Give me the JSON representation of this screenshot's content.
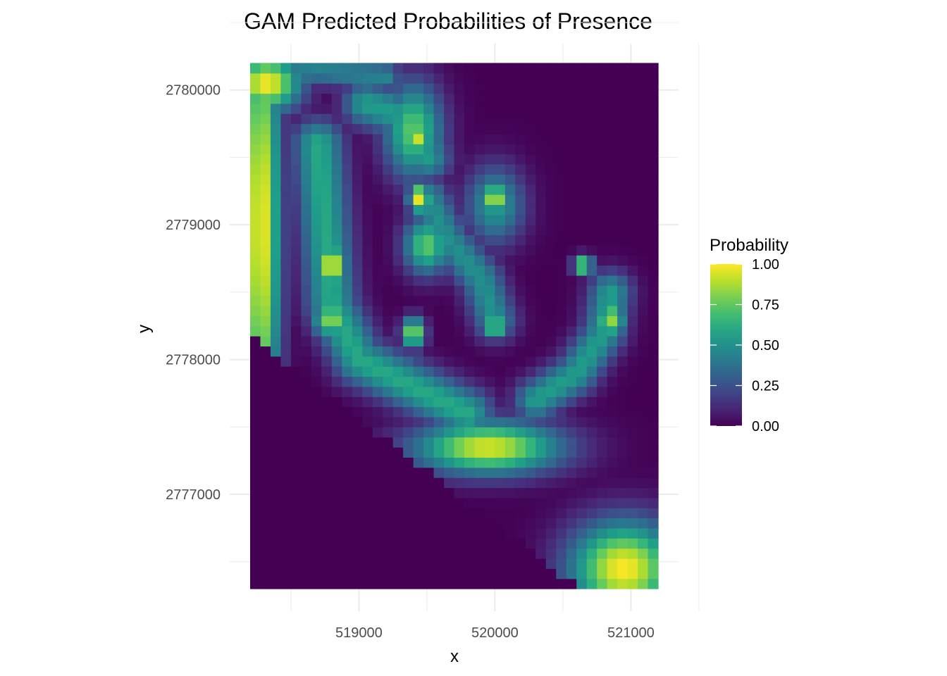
{
  "chart_data": {
    "type": "heatmap",
    "title": "GAM Predicted Probabilities of Presence",
    "xlabel": "x",
    "ylabel": "y",
    "x_ticks": [
      519000,
      520000,
      521000
    ],
    "x_tick_labels": [
      "519000",
      "520000",
      "521000"
    ],
    "y_ticks": [
      2777000,
      2778000,
      2779000,
      2780000
    ],
    "y_tick_labels": [
      "2777000",
      "2778000",
      "2779000",
      "2780000"
    ],
    "xlim": [
      518200,
      521200
    ],
    "ylim": [
      2776300,
      2780150
    ],
    "grid": true,
    "colormap": "viridis",
    "legend": {
      "title": "Probability",
      "position": "right",
      "ticks": [
        0.0,
        0.25,
        0.5,
        0.75,
        1.0
      ],
      "tick_labels": [
        "0.00",
        "0.25",
        "0.50",
        "0.75",
        "1.00"
      ]
    },
    "cell_size": [
      75,
      75
    ],
    "features": [
      {
        "kind": "blob",
        "x": 518280,
        "y": 2779000,
        "rx": 100,
        "ry": 1300,
        "value": 1.0
      },
      {
        "kind": "blob",
        "x": 518320,
        "y": 2780050,
        "rx": 180,
        "ry": 150,
        "value": 1.0
      },
      {
        "kind": "blob",
        "x": 520950,
        "y": 2776450,
        "rx": 280,
        "ry": 250,
        "value": 1.0
      },
      {
        "kind": "blob",
        "x": 519950,
        "y": 2777350,
        "rx": 380,
        "ry": 140,
        "value": 0.95
      },
      {
        "kind": "blob",
        "x": 519400,
        "y": 2779700,
        "rx": 150,
        "ry": 250,
        "value": 0.75
      },
      {
        "kind": "blob",
        "x": 519450,
        "y": 2779650,
        "rx": 60,
        "ry": 80,
        "value": 0.95
      },
      {
        "kind": "blob",
        "x": 519450,
        "y": 2779200,
        "rx": 60,
        "ry": 80,
        "value": 1.0
      },
      {
        "kind": "blob",
        "x": 520000,
        "y": 2779200,
        "rx": 60,
        "ry": 80,
        "value": 1.0
      },
      {
        "kind": "blob",
        "x": 520000,
        "y": 2779150,
        "rx": 150,
        "ry": 200,
        "value": 0.55
      },
      {
        "kind": "blob",
        "x": 519500,
        "y": 2778850,
        "rx": 120,
        "ry": 150,
        "value": 0.75
      },
      {
        "kind": "blob",
        "x": 518800,
        "y": 2778700,
        "rx": 80,
        "ry": 120,
        "value": 1.0
      },
      {
        "kind": "blob",
        "x": 518800,
        "y": 2778300,
        "rx": 100,
        "ry": 100,
        "value": 0.85
      },
      {
        "kind": "blob",
        "x": 519400,
        "y": 2778200,
        "rx": 60,
        "ry": 80,
        "value": 0.9
      },
      {
        "kind": "blob",
        "x": 520000,
        "y": 2778250,
        "rx": 50,
        "ry": 60,
        "value": 0.95
      },
      {
        "kind": "blob",
        "x": 520850,
        "y": 2778300,
        "rx": 80,
        "ry": 100,
        "value": 0.85
      },
      {
        "kind": "blob",
        "x": 520650,
        "y": 2778700,
        "rx": 50,
        "ry": 50,
        "value": 0.9
      },
      {
        "kind": "ridge",
        "points": [
          [
            518700,
            2779600
          ],
          [
            518750,
            2779000
          ],
          [
            518800,
            2778400
          ],
          [
            519000,
            2778000
          ],
          [
            519400,
            2777800
          ],
          [
            519800,
            2777600
          ]
        ],
        "width": 130,
        "value": 0.6
      },
      {
        "kind": "ridge",
        "points": [
          [
            519050,
            2779900
          ],
          [
            519350,
            2779800
          ],
          [
            519500,
            2779500
          ]
        ],
        "width": 120,
        "value": 0.55
      },
      {
        "kind": "ridge",
        "points": [
          [
            519500,
            2779200
          ],
          [
            519650,
            2778900
          ],
          [
            519900,
            2778600
          ],
          [
            520000,
            2778300
          ]
        ],
        "width": 110,
        "value": 0.5
      },
      {
        "kind": "ridge",
        "points": [
          [
            520300,
            2777700
          ],
          [
            520600,
            2777900
          ],
          [
            520800,
            2778200
          ],
          [
            520850,
            2778500
          ]
        ],
        "width": 110,
        "value": 0.55
      },
      {
        "kind": "ridge",
        "points": [
          [
            518250,
            2780100
          ],
          [
            518700,
            2780150
          ],
          [
            519200,
            2780100
          ]
        ],
        "width": 80,
        "value": 0.45
      }
    ]
  }
}
